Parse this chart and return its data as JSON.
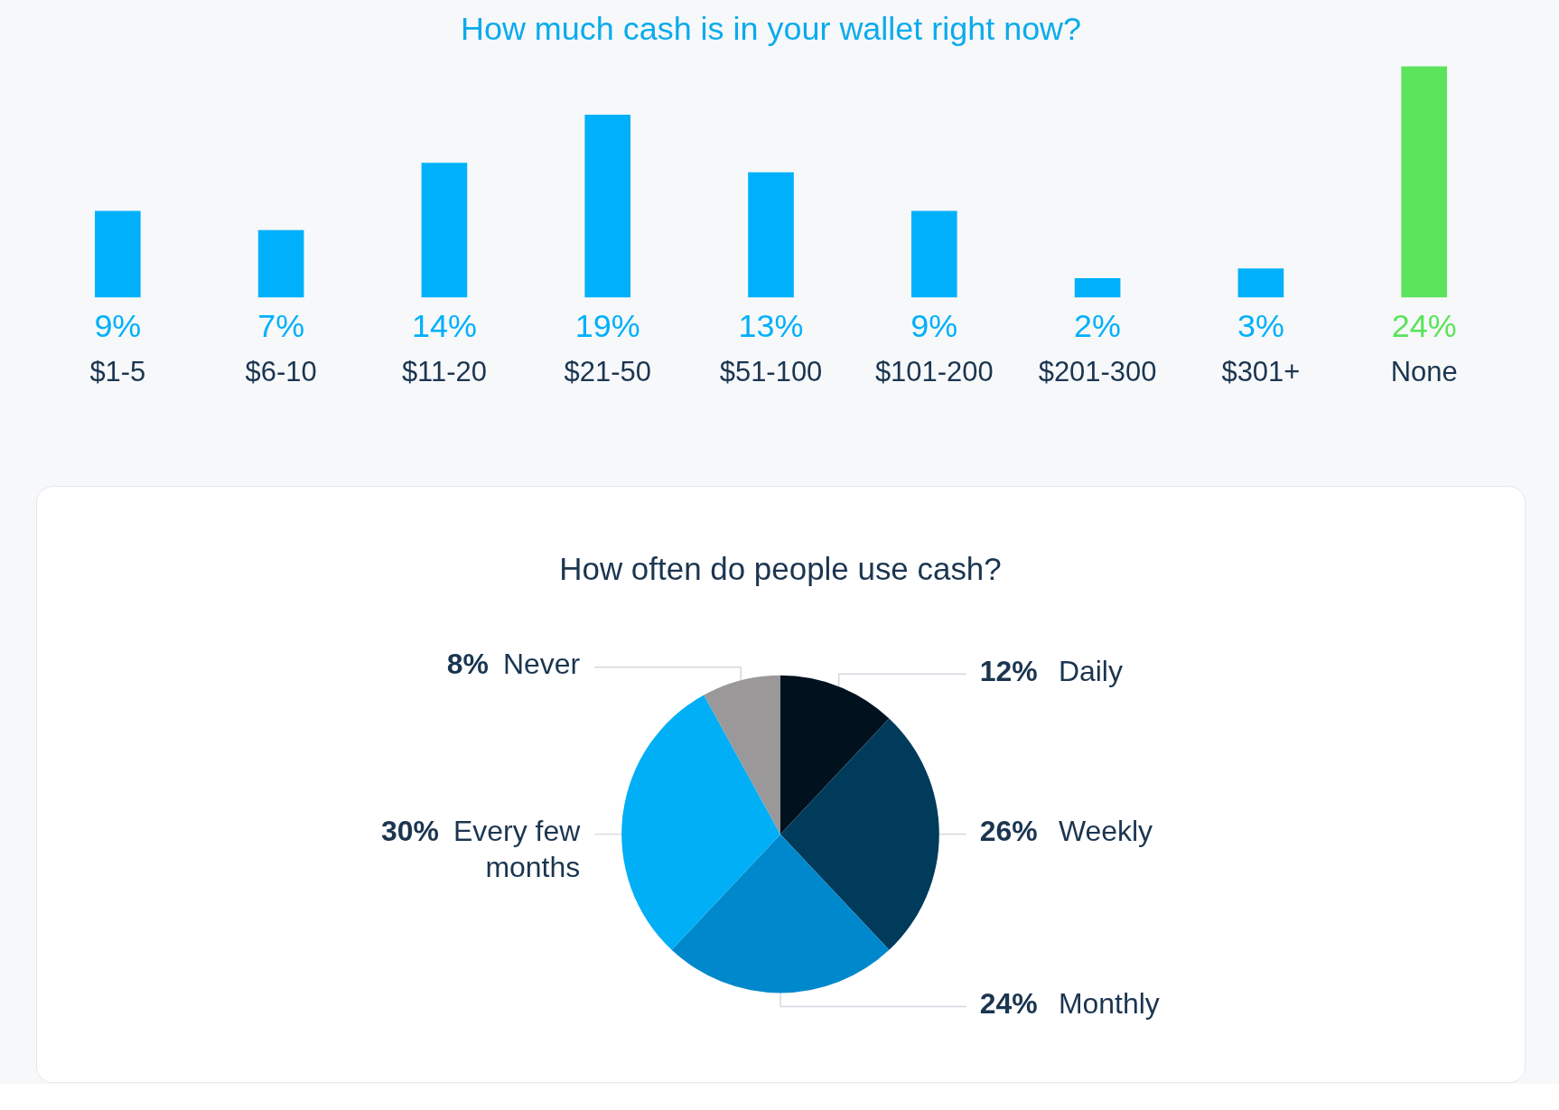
{
  "chart_data": [
    {
      "type": "bar",
      "title": "How much cash is in your wallet right now?",
      "categories": [
        "$1-5",
        "$6-10",
        "$11-20",
        "$21-50",
        "$51-100",
        "$101-200",
        "$201-300",
        "$301+",
        "None"
      ],
      "values": [
        9,
        7,
        14,
        19,
        13,
        9,
        2,
        3,
        24
      ],
      "colors": [
        "#00b0fa",
        "#00b0fa",
        "#00b0fa",
        "#00b0fa",
        "#00b0fa",
        "#00b0fa",
        "#00b0fa",
        "#00b0fa",
        "#5be35b"
      ],
      "value_labels": [
        "9%",
        "7%",
        "14%",
        "19%",
        "13%",
        "9%",
        "2%",
        "3%",
        "24%"
      ]
    },
    {
      "type": "pie",
      "title": "How often do people use cash?",
      "categories": [
        "Daily",
        "Weekly",
        "Monthly",
        "Every few months",
        "Never"
      ],
      "values": [
        12,
        26,
        24,
        30,
        8
      ],
      "colors": [
        "#02111e",
        "#003b5c",
        "#0088cc",
        "#00aff5",
        "#9a9899"
      ],
      "value_labels": [
        "12%",
        "26%",
        "24%",
        "30%",
        "8%"
      ]
    }
  ]
}
